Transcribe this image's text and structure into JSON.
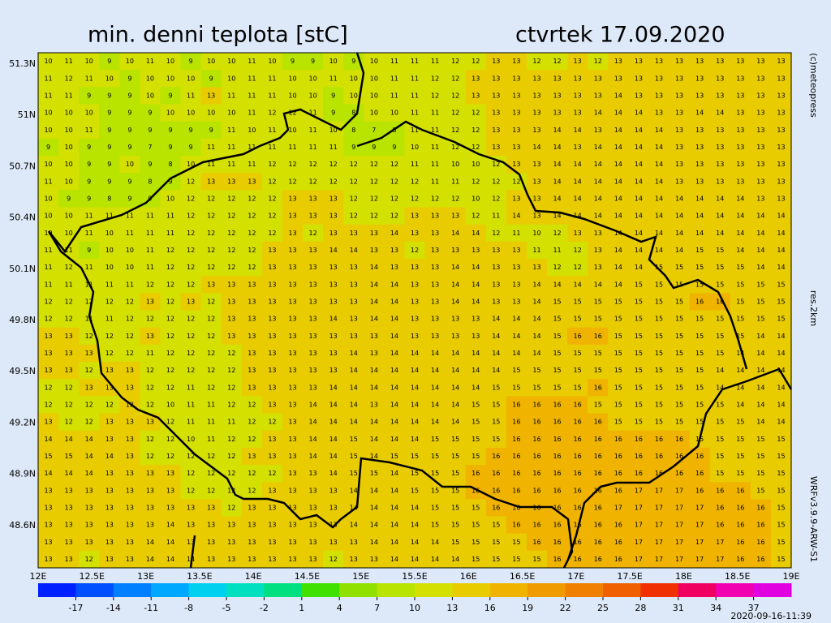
{
  "header": {
    "title": "min. denni teplota [stC]",
    "date": "ctvrtek 17.09.2020"
  },
  "side": {
    "copyright": "(c)meteopress",
    "resolution": "res.2km",
    "model": "WRFv3.9.9-ARW-S1"
  },
  "footer": {
    "timestamp": "2020-09-16-11:39"
  },
  "map": {
    "lat_labels": [
      "51.3N",
      "51N",
      "50.7N",
      "50.4N",
      "50.1N",
      "49.8N",
      "49.5N",
      "49.2N",
      "48.9N",
      "48.6N"
    ],
    "lon_labels": [
      "12E",
      "12.5E",
      "13E",
      "13.5E",
      "14E",
      "14.5E",
      "15E",
      "15.5E",
      "16E",
      "16.5E",
      "17E",
      "17.5E",
      "18E",
      "18.5E",
      "19E"
    ],
    "rows": [
      [
        10,
        11,
        10,
        9,
        10,
        11,
        10,
        9,
        10,
        10,
        11,
        10,
        9,
        9,
        10,
        9,
        10,
        11,
        11,
        11,
        12,
        12,
        13,
        13,
        12,
        12,
        13,
        12,
        13,
        13,
        13,
        13,
        13,
        13,
        13,
        13,
        13
      ],
      [
        11,
        12,
        11,
        10,
        9,
        10,
        10,
        10,
        9,
        10,
        11,
        11,
        10,
        10,
        11,
        10,
        10,
        11,
        11,
        12,
        12,
        13,
        13,
        13,
        13,
        13,
        13,
        13,
        13,
        13,
        13,
        13,
        13,
        13,
        13,
        13,
        13
      ],
      [
        11,
        11,
        9,
        9,
        9,
        10,
        9,
        11,
        13,
        11,
        11,
        11,
        10,
        10,
        9,
        10,
        10,
        11,
        11,
        12,
        12,
        13,
        13,
        13,
        13,
        13,
        13,
        13,
        14,
        13,
        13,
        13,
        13,
        13,
        13,
        13,
        13
      ],
      [
        10,
        10,
        10,
        9,
        9,
        9,
        10,
        10,
        10,
        10,
        11,
        12,
        12,
        11,
        9,
        8,
        10,
        10,
        11,
        11,
        12,
        12,
        13,
        13,
        13,
        13,
        13,
        14,
        14,
        14,
        13,
        13,
        14,
        14,
        13,
        13,
        13
      ],
      [
        10,
        10,
        11,
        9,
        9,
        9,
        9,
        9,
        9,
        11,
        10,
        11,
        10,
        11,
        10,
        8,
        7,
        8,
        11,
        11,
        12,
        12,
        13,
        13,
        13,
        14,
        14,
        13,
        14,
        14,
        14,
        13,
        13,
        13,
        13,
        13,
        13
      ],
      [
        9,
        10,
        9,
        9,
        9,
        7,
        9,
        9,
        11,
        11,
        11,
        11,
        11,
        11,
        11,
        9,
        9,
        9,
        10,
        11,
        12,
        12,
        13,
        13,
        14,
        14,
        13,
        14,
        14,
        14,
        14,
        13,
        13,
        13,
        13,
        13,
        13
      ],
      [
        10,
        10,
        9,
        9,
        10,
        9,
        8,
        10,
        11,
        11,
        11,
        12,
        12,
        12,
        12,
        12,
        12,
        12,
        11,
        11,
        10,
        10,
        12,
        13,
        13,
        14,
        14,
        14,
        14,
        14,
        14,
        13,
        13,
        13,
        13,
        13,
        13
      ],
      [
        11,
        10,
        9,
        9,
        9,
        8,
        9,
        12,
        13,
        13,
        13,
        12,
        12,
        12,
        12,
        12,
        12,
        12,
        12,
        11,
        11,
        12,
        12,
        12,
        13,
        14,
        14,
        14,
        14,
        14,
        14,
        13,
        13,
        13,
        13,
        13,
        13
      ],
      [
        10,
        9,
        9,
        8,
        9,
        9,
        10,
        12,
        12,
        12,
        12,
        12,
        13,
        13,
        13,
        12,
        12,
        12,
        12,
        12,
        12,
        10,
        12,
        13,
        13,
        14,
        14,
        14,
        14,
        14,
        14,
        14,
        14,
        14,
        14,
        13,
        13
      ],
      [
        10,
        10,
        11,
        11,
        11,
        11,
        11,
        12,
        12,
        12,
        12,
        12,
        13,
        13,
        13,
        12,
        12,
        12,
        13,
        13,
        13,
        12,
        11,
        14,
        13,
        14,
        14,
        14,
        14,
        14,
        14,
        14,
        14,
        14,
        14,
        14,
        14
      ],
      [
        10,
        10,
        11,
        10,
        11,
        11,
        11,
        12,
        12,
        12,
        12,
        12,
        13,
        12,
        13,
        13,
        13,
        14,
        13,
        13,
        14,
        14,
        12,
        11,
        10,
        12,
        13,
        13,
        14,
        14,
        14,
        14,
        14,
        14,
        14,
        14,
        14
      ],
      [
        11,
        11,
        9,
        10,
        10,
        11,
        12,
        12,
        12,
        12,
        12,
        13,
        13,
        13,
        14,
        14,
        13,
        13,
        12,
        13,
        13,
        13,
        13,
        13,
        11,
        11,
        12,
        13,
        14,
        14,
        14,
        14,
        15,
        15,
        14,
        14,
        14
      ],
      [
        11,
        12,
        11,
        10,
        10,
        11,
        12,
        12,
        12,
        12,
        12,
        13,
        13,
        13,
        13,
        13,
        14,
        13,
        13,
        13,
        14,
        14,
        13,
        13,
        13,
        12,
        12,
        13,
        14,
        14,
        15,
        15,
        15,
        15,
        15,
        14,
        14
      ],
      [
        11,
        11,
        11,
        11,
        11,
        12,
        12,
        12,
        13,
        13,
        13,
        13,
        13,
        13,
        13,
        13,
        14,
        14,
        13,
        13,
        14,
        14,
        13,
        13,
        14,
        14,
        14,
        14,
        14,
        15,
        15,
        15,
        15,
        15,
        15,
        15,
        15
      ],
      [
        12,
        12,
        12,
        12,
        12,
        13,
        12,
        13,
        12,
        13,
        13,
        13,
        13,
        13,
        13,
        13,
        14,
        14,
        13,
        13,
        14,
        14,
        13,
        13,
        14,
        15,
        15,
        15,
        15,
        15,
        15,
        15,
        16,
        16,
        15,
        15,
        15
      ],
      [
        12,
        12,
        11,
        11,
        12,
        12,
        12,
        12,
        12,
        13,
        13,
        13,
        13,
        13,
        14,
        13,
        14,
        14,
        13,
        13,
        13,
        13,
        14,
        14,
        14,
        15,
        15,
        15,
        15,
        15,
        15,
        15,
        15,
        15,
        15,
        15,
        15
      ],
      [
        13,
        13,
        12,
        12,
        12,
        13,
        12,
        12,
        12,
        13,
        13,
        13,
        13,
        13,
        13,
        13,
        13,
        14,
        13,
        13,
        13,
        13,
        14,
        14,
        14,
        15,
        16,
        16,
        15,
        15,
        15,
        15,
        15,
        15,
        15,
        14,
        14
      ],
      [
        13,
        13,
        13,
        12,
        12,
        11,
        12,
        12,
        12,
        12,
        13,
        13,
        13,
        13,
        13,
        14,
        13,
        14,
        14,
        14,
        14,
        14,
        14,
        14,
        14,
        15,
        15,
        15,
        15,
        15,
        15,
        15,
        15,
        15,
        14,
        14,
        14
      ],
      [
        13,
        13,
        12,
        13,
        13,
        12,
        12,
        12,
        12,
        12,
        13,
        13,
        13,
        13,
        13,
        14,
        14,
        14,
        14,
        14,
        14,
        14,
        14,
        15,
        15,
        15,
        15,
        15,
        15,
        15,
        15,
        15,
        15,
        14,
        14,
        14,
        14
      ],
      [
        12,
        12,
        13,
        13,
        13,
        12,
        12,
        11,
        12,
        12,
        13,
        13,
        13,
        13,
        14,
        14,
        14,
        14,
        14,
        14,
        14,
        14,
        15,
        15,
        15,
        15,
        15,
        16,
        15,
        15,
        15,
        15,
        15,
        14,
        14,
        14,
        14
      ],
      [
        12,
        12,
        12,
        12,
        13,
        12,
        10,
        11,
        11,
        12,
        12,
        13,
        13,
        14,
        14,
        14,
        13,
        14,
        14,
        14,
        14,
        15,
        15,
        16,
        16,
        16,
        16,
        15,
        15,
        15,
        15,
        15,
        15,
        15,
        14,
        14,
        14
      ],
      [
        13,
        12,
        12,
        13,
        13,
        13,
        12,
        11,
        11,
        11,
        12,
        12,
        13,
        14,
        14,
        14,
        14,
        14,
        14,
        14,
        14,
        15,
        15,
        16,
        16,
        16,
        16,
        16,
        15,
        15,
        15,
        15,
        15,
        15,
        15,
        14,
        14
      ],
      [
        14,
        14,
        14,
        13,
        13,
        12,
        12,
        10,
        11,
        12,
        12,
        13,
        13,
        14,
        14,
        15,
        14,
        14,
        14,
        15,
        15,
        15,
        15,
        16,
        16,
        16,
        16,
        16,
        16,
        16,
        16,
        16,
        15,
        15,
        15,
        15,
        15
      ],
      [
        15,
        15,
        14,
        14,
        13,
        12,
        12,
        12,
        12,
        12,
        13,
        13,
        13,
        14,
        14,
        15,
        14,
        15,
        15,
        15,
        15,
        15,
        16,
        16,
        16,
        16,
        16,
        16,
        16,
        16,
        16,
        16,
        16,
        15,
        15,
        15,
        15
      ],
      [
        14,
        14,
        14,
        13,
        13,
        13,
        13,
        12,
        12,
        12,
        12,
        12,
        13,
        13,
        14,
        15,
        15,
        14,
        15,
        15,
        15,
        16,
        16,
        16,
        16,
        16,
        16,
        16,
        16,
        16,
        16,
        16,
        16,
        15,
        15,
        15,
        15
      ],
      [
        13,
        13,
        13,
        13,
        13,
        13,
        13,
        12,
        12,
        12,
        12,
        13,
        13,
        13,
        13,
        14,
        14,
        14,
        15,
        15,
        15,
        16,
        16,
        16,
        16,
        16,
        16,
        16,
        16,
        17,
        17,
        17,
        16,
        16,
        16,
        15,
        15
      ],
      [
        13,
        13,
        13,
        13,
        13,
        13,
        13,
        13,
        13,
        12,
        13,
        13,
        13,
        13,
        13,
        14,
        14,
        14,
        14,
        15,
        15,
        15,
        16,
        16,
        16,
        16,
        16,
        16,
        17,
        17,
        17,
        17,
        17,
        16,
        16,
        16,
        15
      ],
      [
        13,
        13,
        13,
        13,
        13,
        13,
        14,
        13,
        13,
        13,
        13,
        13,
        13,
        13,
        13,
        14,
        14,
        14,
        14,
        15,
        15,
        15,
        15,
        16,
        16,
        16,
        16,
        16,
        16,
        17,
        17,
        17,
        17,
        16,
        16,
        16,
        15
      ],
      [
        13,
        13,
        13,
        13,
        13,
        14,
        14,
        13,
        13,
        13,
        13,
        13,
        13,
        13,
        13,
        13,
        14,
        14,
        14,
        14,
        15,
        15,
        15,
        15,
        16,
        16,
        16,
        16,
        16,
        17,
        17,
        17,
        17,
        17,
        16,
        16,
        15
      ],
      [
        13,
        13,
        12,
        13,
        13,
        14,
        14,
        14,
        13,
        13,
        13,
        13,
        13,
        13,
        12,
        13,
        13,
        14,
        14,
        14,
        14,
        15,
        15,
        15,
        15,
        16,
        16,
        16,
        16,
        17,
        17,
        17,
        17,
        17,
        16,
        16,
        15
      ]
    ]
  },
  "colorbar": {
    "range": [
      -20,
      40
    ],
    "ticks": [
      -17,
      -14,
      -11,
      -8,
      -5,
      -2,
      1,
      4,
      7,
      10,
      13,
      16,
      19,
      22,
      25,
      28,
      31,
      34,
      37
    ],
    "colors": [
      "#0020ff",
      "#0050ff",
      "#0080ff",
      "#00a8ff",
      "#00d0f0",
      "#00e0c0",
      "#00e080",
      "#40e000",
      "#90e000",
      "#b8e400",
      "#d4e000",
      "#e8cc00",
      "#f0b400",
      "#f09c00",
      "#f08000",
      "#f06000",
      "#f03000",
      "#f00060",
      "#f000b0",
      "#e000e0"
    ]
  }
}
